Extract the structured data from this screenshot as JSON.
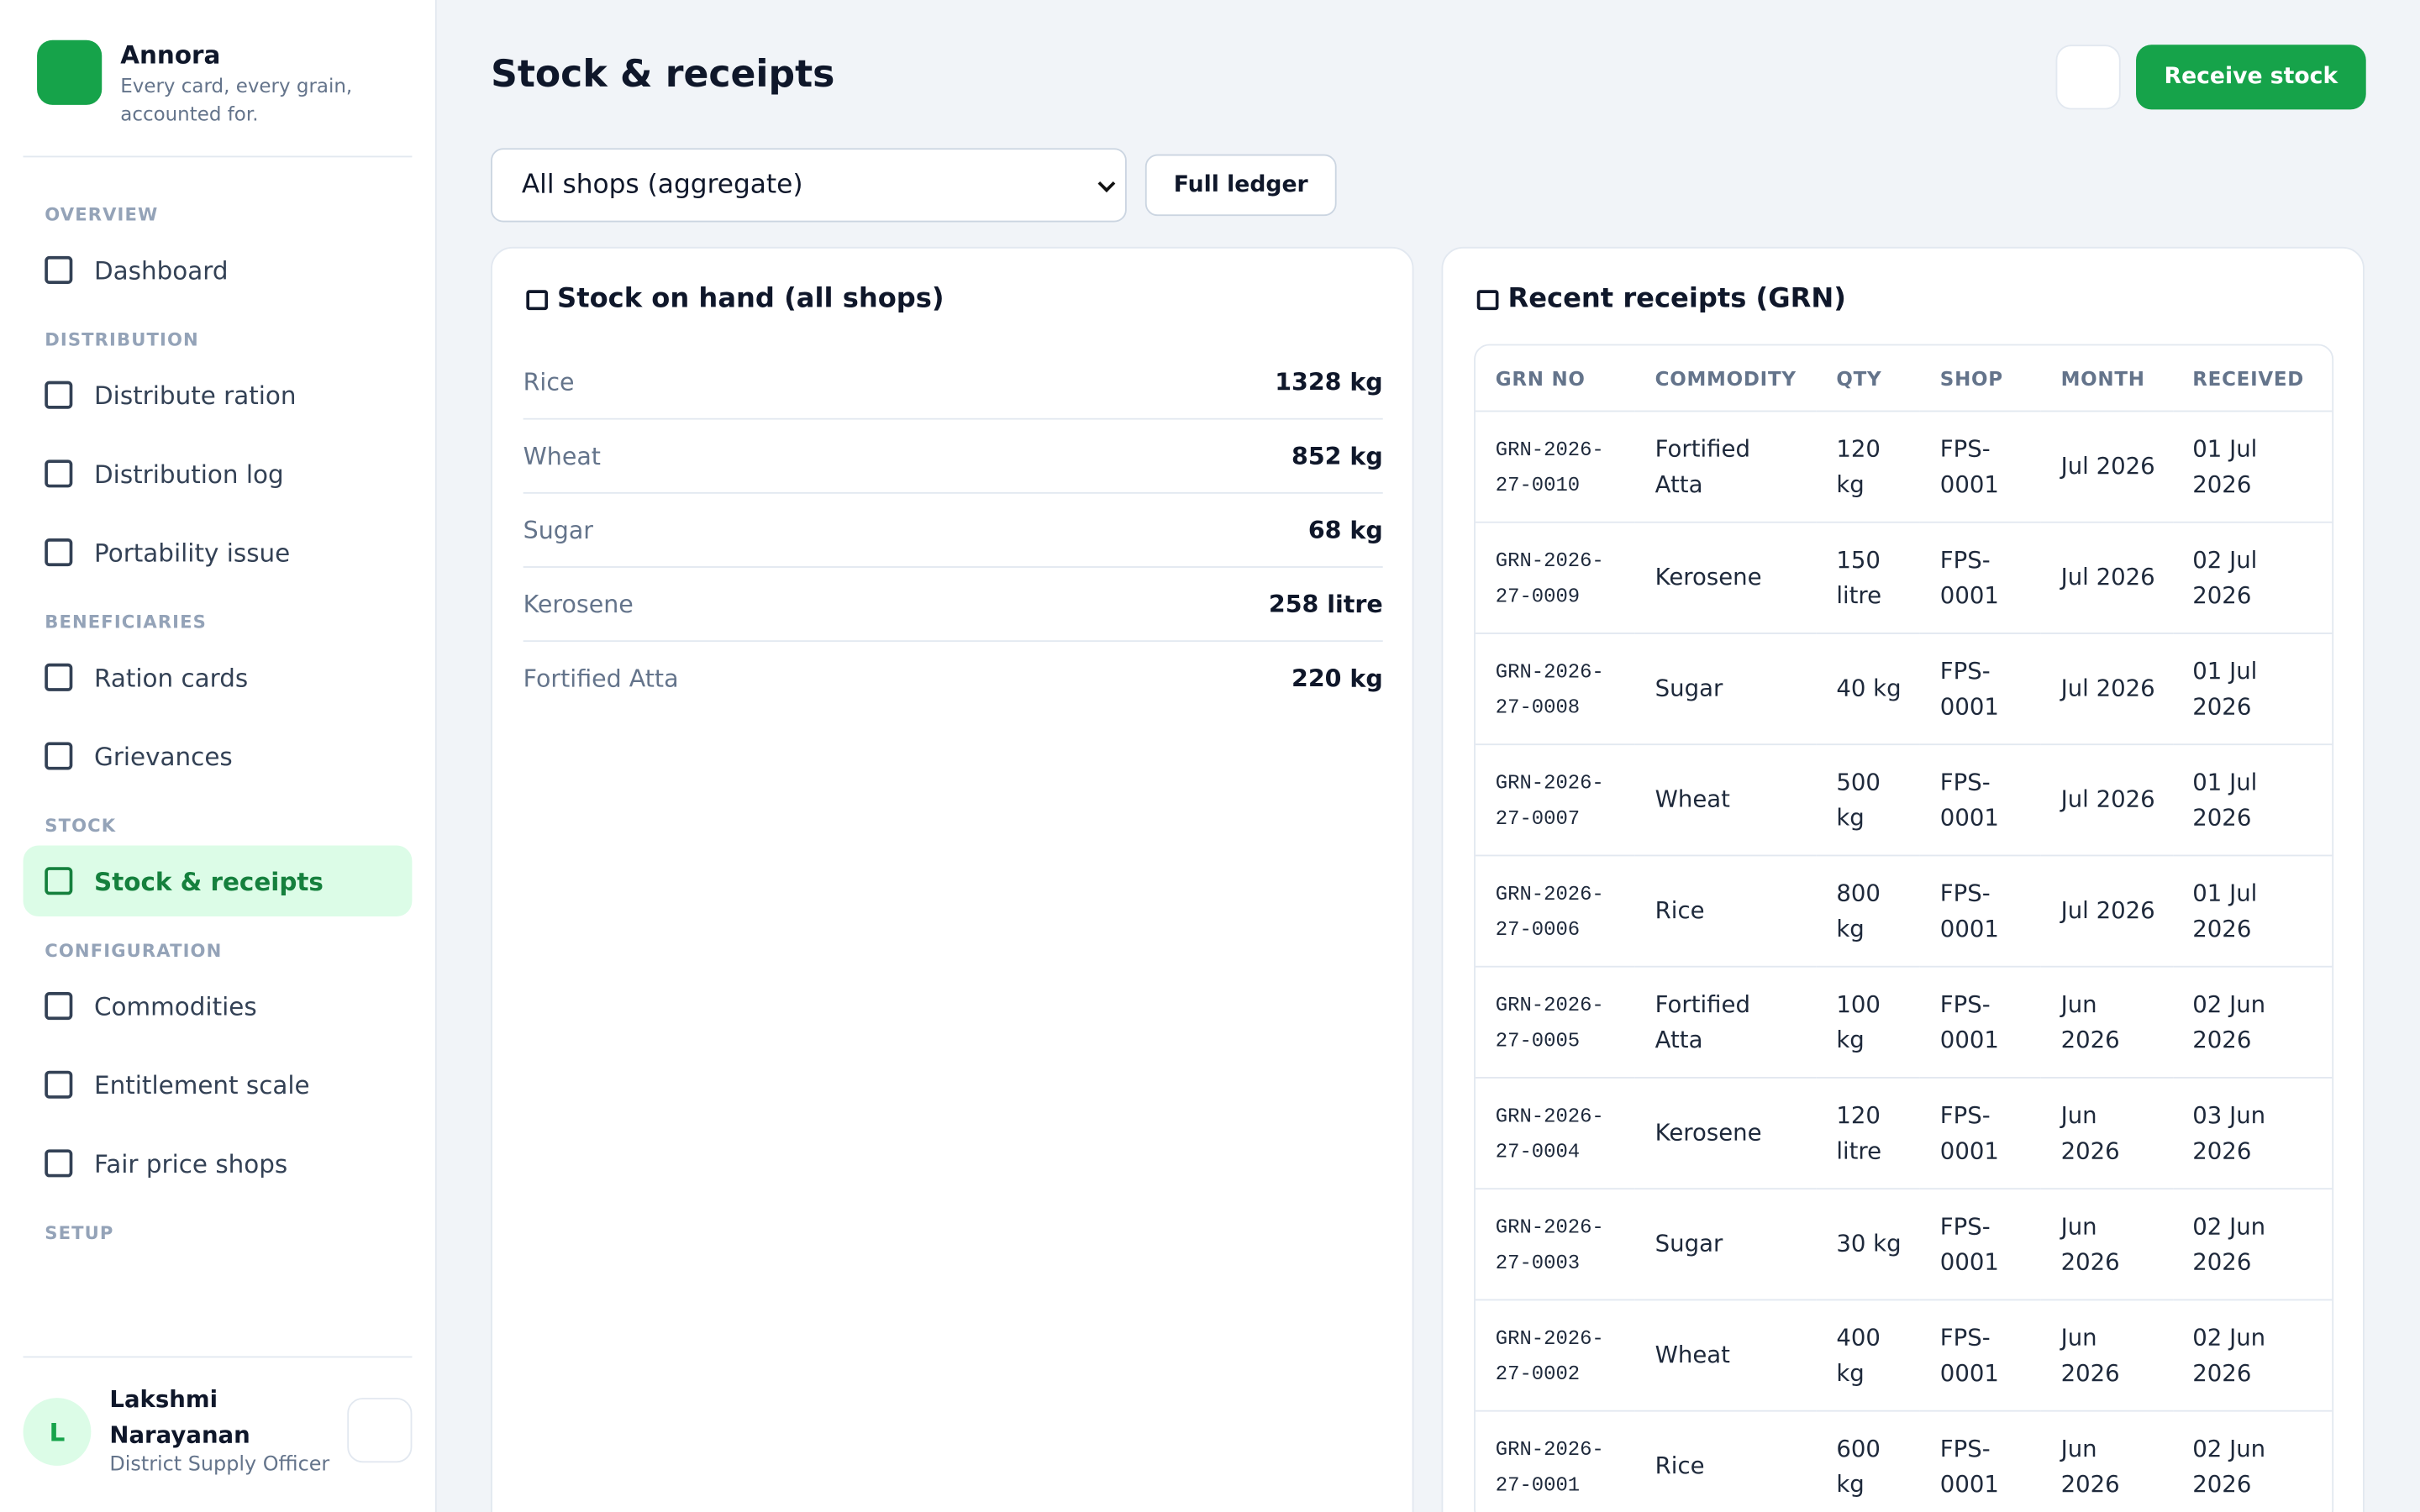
{
  "brand": {
    "name": "Annora",
    "tagline": "Every card, every grain, accounted for."
  },
  "nav": [
    {
      "section": "OVERVIEW",
      "items": [
        {
          "label": "Dashboard"
        }
      ]
    },
    {
      "section": "DISTRIBUTION",
      "items": [
        {
          "label": "Distribute ration"
        },
        {
          "label": "Distribution log"
        },
        {
          "label": "Portability issue"
        }
      ]
    },
    {
      "section": "BENEFICIARIES",
      "items": [
        {
          "label": "Ration cards"
        },
        {
          "label": "Grievances"
        }
      ]
    },
    {
      "section": "STOCK",
      "items": [
        {
          "label": "Stock & receipts",
          "active": true
        }
      ]
    },
    {
      "section": "CONFIGURATION",
      "items": [
        {
          "label": "Commodities"
        },
        {
          "label": "Entitlement scale"
        },
        {
          "label": "Fair price shops"
        }
      ]
    },
    {
      "section": "SETUP",
      "items": []
    }
  ],
  "user": {
    "initial": "L",
    "name": "Lakshmi Narayanan",
    "role": "District Supply Officer"
  },
  "header": {
    "title": "Stock & receipts",
    "receive_button": "Receive stock"
  },
  "filters": {
    "shop_select": "All shops (aggregate)",
    "ledger_button": "Full ledger"
  },
  "stock_card": {
    "title": "Stock on hand (all shops)",
    "rows": [
      [
        "Rice",
        "1328 kg"
      ],
      [
        "Wheat",
        "852 kg"
      ],
      [
        "Sugar",
        "68 kg"
      ],
      [
        "Kerosene",
        "258 litre"
      ],
      [
        "Fortified Atta",
        "220 kg"
      ]
    ]
  },
  "receipts_card": {
    "title": "Recent receipts (GRN)",
    "columns": [
      "GRN NO",
      "COMMODITY",
      "QTY",
      "SHOP",
      "MONTH",
      "RECEIVED"
    ],
    "rows": [
      [
        "GRN-2026-27-0010",
        "Fortified Atta",
        "120 kg",
        "FPS-0001",
        "Jul 2026",
        "01 Jul 2026"
      ],
      [
        "GRN-2026-27-0009",
        "Kerosene",
        "150 litre",
        "FPS-0001",
        "Jul 2026",
        "02 Jul 2026"
      ],
      [
        "GRN-2026-27-0008",
        "Sugar",
        "40 kg",
        "FPS-0001",
        "Jul 2026",
        "01 Jul 2026"
      ],
      [
        "GRN-2026-27-0007",
        "Wheat",
        "500 kg",
        "FPS-0001",
        "Jul 2026",
        "01 Jul 2026"
      ],
      [
        "GRN-2026-27-0006",
        "Rice",
        "800 kg",
        "FPS-0001",
        "Jul 2026",
        "01 Jul 2026"
      ],
      [
        "GRN-2026-27-0005",
        "Fortified Atta",
        "100 kg",
        "FPS-0001",
        "Jun 2026",
        "02 Jun 2026"
      ],
      [
        "GRN-2026-27-0004",
        "Kerosene",
        "120 litre",
        "FPS-0001",
        "Jun 2026",
        "03 Jun 2026"
      ],
      [
        "GRN-2026-27-0003",
        "Sugar",
        "30 kg",
        "FPS-0001",
        "Jun 2026",
        "02 Jun 2026"
      ],
      [
        "GRN-2026-27-0002",
        "Wheat",
        "400 kg",
        "FPS-0001",
        "Jun 2026",
        "02 Jun 2026"
      ],
      [
        "GRN-2026-27-0001",
        "Rice",
        "600 kg",
        "FPS-0001",
        "Jun 2026",
        "02 Jun 2026"
      ]
    ]
  }
}
